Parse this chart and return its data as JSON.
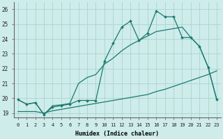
{
  "xlabel": "Humidex (Indice chaleur)",
  "x_values": [
    0,
    1,
    2,
    3,
    4,
    5,
    6,
    7,
    8,
    9,
    10,
    11,
    12,
    13,
    14,
    15,
    16,
    17,
    18,
    19,
    20,
    21,
    22,
    23
  ],
  "line_jagged_y": [
    19.9,
    19.6,
    19.7,
    18.9,
    19.4,
    19.5,
    19.6,
    19.85,
    19.85,
    19.85,
    22.5,
    23.7,
    24.8,
    25.2,
    23.9,
    24.4,
    25.9,
    25.5,
    25.5,
    24.1,
    24.1,
    23.5,
    22.1,
    19.9
  ],
  "line_upper_diag_y": [
    19.9,
    19.6,
    19.7,
    18.9,
    19.5,
    19.55,
    19.65,
    21.0,
    21.4,
    21.6,
    22.3,
    22.7,
    23.2,
    23.6,
    23.9,
    24.2,
    24.5,
    24.6,
    24.7,
    24.8,
    24.1,
    23.5,
    22.1,
    19.9
  ],
  "line_lower_flat_y": [
    19.1,
    19.1,
    19.1,
    19.0,
    19.15,
    19.25,
    19.35,
    19.45,
    19.55,
    19.65,
    19.75,
    19.85,
    19.95,
    20.05,
    20.15,
    20.25,
    20.45,
    20.6,
    20.8,
    21.0,
    21.2,
    21.4,
    21.6,
    21.85
  ],
  "bg_color": "#ceecea",
  "line_color": "#1a7a6e",
  "grid_color": "#aad4d0",
  "ylim": [
    18.7,
    26.5
  ],
  "xlim": [
    -0.5,
    23.5
  ],
  "yticks": [
    19,
    20,
    21,
    22,
    23,
    24,
    25,
    26
  ],
  "xticks": [
    0,
    1,
    2,
    3,
    4,
    5,
    6,
    7,
    8,
    9,
    10,
    11,
    12,
    13,
    14,
    15,
    16,
    17,
    18,
    19,
    20,
    21,
    22,
    23
  ]
}
